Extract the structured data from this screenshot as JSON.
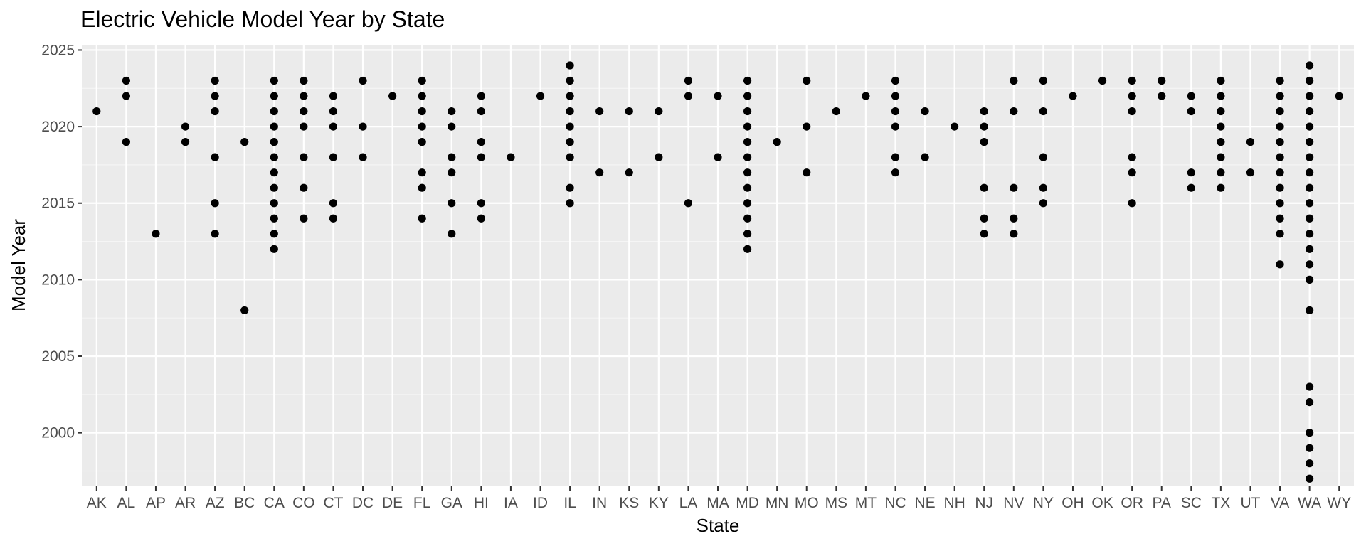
{
  "chart_data": {
    "type": "scatter",
    "title": "Electric Vehicle Model Year by State",
    "xlabel": "State",
    "ylabel": "Model Year",
    "categories": [
      "AK",
      "AL",
      "AP",
      "AR",
      "AZ",
      "BC",
      "CA",
      "CO",
      "CT",
      "DC",
      "DE",
      "FL",
      "GA",
      "HI",
      "IA",
      "ID",
      "IL",
      "IN",
      "KS",
      "KY",
      "LA",
      "MA",
      "MD",
      "MN",
      "MO",
      "MS",
      "MT",
      "NC",
      "NE",
      "NH",
      "NJ",
      "NV",
      "NY",
      "OH",
      "OK",
      "OR",
      "PA",
      "SC",
      "TX",
      "UT",
      "VA",
      "WA",
      "WY"
    ],
    "ylim": [
      1996.5,
      2025.3
    ],
    "yticks": [
      2000,
      2005,
      2010,
      2015,
      2020,
      2025
    ],
    "grid": true,
    "legend": "none",
    "points": {
      "AK": [
        2021
      ],
      "AL": [
        2023,
        2022,
        2019
      ],
      "AP": [
        2013
      ],
      "AR": [
        2020,
        2019
      ],
      "AZ": [
        2023,
        2022,
        2021,
        2018,
        2015,
        2013
      ],
      "BC": [
        2019,
        2008
      ],
      "CA": [
        2023,
        2022,
        2021,
        2020,
        2019,
        2018,
        2017,
        2016,
        2015,
        2014,
        2013,
        2012
      ],
      "CO": [
        2023,
        2022,
        2021,
        2020,
        2018,
        2016,
        2014
      ],
      "CT": [
        2022,
        2021,
        2020,
        2018,
        2015,
        2014
      ],
      "DC": [
        2023,
        2020,
        2018
      ],
      "DE": [
        2022
      ],
      "FL": [
        2023,
        2022,
        2021,
        2020,
        2019,
        2017,
        2016,
        2014
      ],
      "GA": [
        2021,
        2020,
        2018,
        2017,
        2015,
        2013
      ],
      "HI": [
        2022,
        2021,
        2019,
        2018,
        2015,
        2014
      ],
      "IA": [
        2018
      ],
      "ID": [
        2022
      ],
      "IL": [
        2024,
        2023,
        2022,
        2021,
        2020,
        2019,
        2018,
        2016,
        2015
      ],
      "IN": [
        2021,
        2017
      ],
      "KS": [
        2021,
        2017
      ],
      "KY": [
        2021,
        2018
      ],
      "LA": [
        2023,
        2022,
        2015
      ],
      "MA": [
        2022,
        2018
      ],
      "MD": [
        2023,
        2022,
        2021,
        2020,
        2019,
        2018,
        2017,
        2016,
        2015,
        2014,
        2013,
        2012
      ],
      "MN": [
        2019
      ],
      "MO": [
        2023,
        2020,
        2017
      ],
      "MS": [
        2021
      ],
      "MT": [
        2022
      ],
      "NC": [
        2023,
        2022,
        2021,
        2020,
        2018,
        2017
      ],
      "NE": [
        2021,
        2018
      ],
      "NH": [
        2020
      ],
      "NJ": [
        2021,
        2020,
        2019,
        2016,
        2014,
        2013
      ],
      "NV": [
        2023,
        2021,
        2016,
        2014,
        2013
      ],
      "NY": [
        2023,
        2021,
        2018,
        2016,
        2015
      ],
      "OH": [
        2022
      ],
      "OK": [
        2023
      ],
      "OR": [
        2023,
        2022,
        2021,
        2018,
        2017,
        2015
      ],
      "PA": [
        2023,
        2022
      ],
      "SC": [
        2022,
        2021,
        2017,
        2016
      ],
      "TX": [
        2023,
        2022,
        2021,
        2020,
        2019,
        2018,
        2017,
        2016
      ],
      "UT": [
        2019,
        2017
      ],
      "VA": [
        2023,
        2022,
        2021,
        2020,
        2019,
        2018,
        2017,
        2016,
        2015,
        2014,
        2013,
        2011
      ],
      "WA": [
        2024,
        2023,
        2022,
        2021,
        2020,
        2019,
        2018,
        2017,
        2016,
        2015,
        2014,
        2013,
        2012,
        2011,
        2010,
        2008,
        2003,
        2002,
        2000,
        1999,
        1998,
        1997
      ],
      "WY": [
        2022
      ]
    },
    "colors": {
      "panel_background": "#ebebeb",
      "grid_major": "#ffffff",
      "grid_minor": "#f5f5f5",
      "point": "#000000",
      "tick": "#333333"
    }
  }
}
